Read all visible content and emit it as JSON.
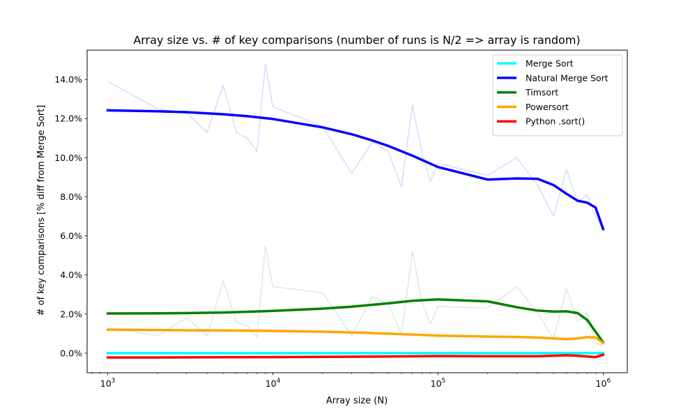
{
  "chart_data": {
    "type": "line",
    "title": "Array size vs. # of key comparisons (number of runs is N/2 => array is random)",
    "xlabel": "Array size (N)",
    "ylabel": "# of key comparisons [% diff from Merge Sort]",
    "xscale": "log",
    "xlim": [
      750,
      1400000
    ],
    "ylim": [
      -1.0,
      15.5
    ],
    "x_ticks": [
      {
        "value": 1000,
        "base": "10",
        "exp": "3"
      },
      {
        "value": 10000,
        "base": "10",
        "exp": "4"
      },
      {
        "value": 100000,
        "base": "10",
        "exp": "5"
      },
      {
        "value": 1000000,
        "base": "10",
        "exp": "6"
      }
    ],
    "y_ticks": [
      {
        "value": 0,
        "label": "0.0%"
      },
      {
        "value": 2,
        "label": "2.0%"
      },
      {
        "value": 4,
        "label": "4.0%"
      },
      {
        "value": 6,
        "label": "6.0%"
      },
      {
        "value": 8,
        "label": "8.0%"
      },
      {
        "value": 10,
        "label": "10.0%"
      },
      {
        "value": 12,
        "label": "12.0%"
      },
      {
        "value": 14,
        "label": "14.0%"
      }
    ],
    "legend_position": "top-right",
    "grid": false,
    "raw_series": [
      {
        "color": "#0000ff",
        "opacity": 0.15,
        "x": [
          1000,
          2000,
          3000,
          4000,
          5000,
          6000,
          7000,
          8000,
          9000,
          10000,
          20000,
          30000,
          40000,
          50000,
          60000,
          70000,
          80000,
          90000,
          100000,
          200000,
          300000,
          400000,
          500000,
          600000,
          700000,
          800000,
          900000,
          1000000
        ],
        "y": [
          13.9,
          12.5,
          12.3,
          11.3,
          13.7,
          11.3,
          11.0,
          10.3,
          14.8,
          12.6,
          11.6,
          9.2,
          10.8,
          10.3,
          8.5,
          12.7,
          10.2,
          8.8,
          9.7,
          9.1,
          10.0,
          8.6,
          7.0,
          9.4,
          7.7,
          8.1,
          7.0,
          6.3
        ]
      },
      {
        "color": "#008000",
        "opacity": 0.15,
        "x": [
          1000,
          2000,
          3000,
          4000,
          5000,
          6000,
          7000,
          8000,
          9000,
          10000,
          20000,
          30000,
          40000,
          50000,
          60000,
          70000,
          80000,
          90000,
          100000,
          200000,
          300000,
          400000,
          500000,
          600000,
          700000,
          800000,
          900000,
          1000000
        ],
        "y": [
          1.3,
          0.9,
          1.8,
          0.9,
          3.7,
          1.6,
          1.4,
          0.8,
          5.5,
          3.4,
          3.1,
          0.9,
          2.9,
          2.5,
          1.0,
          5.2,
          2.6,
          1.5,
          2.4,
          2.3,
          3.4,
          2.1,
          0.7,
          3.3,
          1.6,
          2.1,
          0.5,
          0.4
        ]
      }
    ],
    "series": [
      {
        "name": "Merge Sort",
        "color": "#00ffff",
        "x": [
          1000,
          1000000
        ],
        "y": [
          0.0,
          0.0
        ]
      },
      {
        "name": "Natural Merge Sort",
        "color": "#0000ff",
        "x": [
          1000,
          2000,
          3000,
          5000,
          7000,
          10000,
          20000,
          30000,
          40000,
          50000,
          70000,
          100000,
          200000,
          300000,
          400000,
          500000,
          600000,
          700000,
          800000,
          900000,
          1000000
        ],
        "y": [
          12.42,
          12.37,
          12.33,
          12.22,
          12.12,
          11.98,
          11.55,
          11.2,
          10.88,
          10.6,
          10.1,
          9.52,
          8.88,
          8.94,
          8.92,
          8.6,
          8.15,
          7.8,
          7.7,
          7.45,
          6.35
        ]
      },
      {
        "name": "Timsort",
        "color": "#008000",
        "x": [
          1000,
          2000,
          3000,
          5000,
          10000,
          20000,
          30000,
          50000,
          70000,
          100000,
          200000,
          300000,
          400000,
          500000,
          600000,
          700000,
          800000,
          900000,
          1000000
        ],
        "y": [
          2.03,
          2.04,
          2.05,
          2.08,
          2.16,
          2.28,
          2.38,
          2.55,
          2.68,
          2.75,
          2.65,
          2.35,
          2.18,
          2.13,
          2.14,
          2.05,
          1.7,
          1.1,
          0.55
        ]
      },
      {
        "name": "Powersort",
        "color": "#ffa500",
        "x": [
          1000,
          2000,
          3000,
          5000,
          10000,
          20000,
          30000,
          50000,
          70000,
          100000,
          200000,
          300000,
          400000,
          500000,
          600000,
          700000,
          800000,
          900000,
          1000000
        ],
        "y": [
          1.2,
          1.18,
          1.17,
          1.16,
          1.14,
          1.1,
          1.06,
          1.0,
          0.95,
          0.9,
          0.85,
          0.83,
          0.8,
          0.75,
          0.72,
          0.75,
          0.82,
          0.8,
          0.52
        ]
      },
      {
        "name": "Python .sort()",
        "color": "#ff0000",
        "x": [
          1000,
          2000,
          5000,
          10000,
          20000,
          50000,
          100000,
          200000,
          400000,
          500000,
          600000,
          700000,
          800000,
          900000,
          1000000
        ],
        "y": [
          -0.22,
          -0.22,
          -0.21,
          -0.2,
          -0.19,
          -0.17,
          -0.15,
          -0.16,
          -0.16,
          -0.13,
          -0.11,
          -0.13,
          -0.17,
          -0.2,
          -0.08
        ]
      }
    ]
  }
}
